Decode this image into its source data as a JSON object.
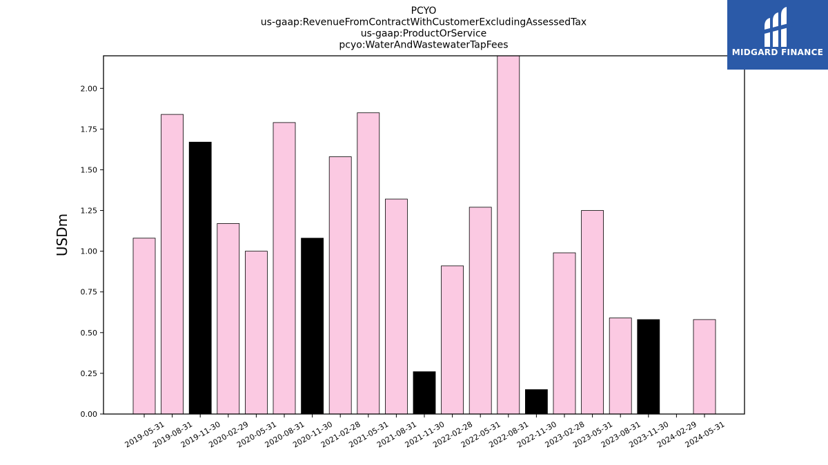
{
  "chart_data": {
    "type": "bar",
    "title_lines": [
      "PCYO",
      "us-gaap:RevenueFromContractWithCustomerExcludingAssessedTax",
      "us-gaap:ProductOrService",
      "pcyo:WaterAndWastewaterTapFees"
    ],
    "xlabel": "",
    "ylabel": "USDm",
    "categories": [
      "2019-05-31",
      "2019-08-31",
      "2019-11-30",
      "2020-02-29",
      "2020-05-31",
      "2020-08-31",
      "2020-11-30",
      "2021-02-28",
      "2021-05-31",
      "2021-08-31",
      "2021-11-30",
      "2022-02-28",
      "2022-05-31",
      "2022-08-31",
      "2022-11-30",
      "2023-02-28",
      "2023-05-31",
      "2023-08-31",
      "2023-11-30",
      "2024-02-29",
      "2024-05-31"
    ],
    "values": [
      1.08,
      1.84,
      1.67,
      1.17,
      1.0,
      1.79,
      1.08,
      1.58,
      1.85,
      1.32,
      0.26,
      0.91,
      1.27,
      2.2,
      0.15,
      0.99,
      1.25,
      0.59,
      0.58,
      0,
      0.58
    ],
    "bar_colors": [
      "#fbc9e2",
      "#fbc9e2",
      "#000000",
      "#fbc9e2",
      "#fbc9e2",
      "#fbc9e2",
      "#000000",
      "#fbc9e2",
      "#fbc9e2",
      "#fbc9e2",
      "#000000",
      "#fbc9e2",
      "#fbc9e2",
      "#fbc9e2",
      "#000000",
      "#fbc9e2",
      "#fbc9e2",
      "#fbc9e2",
      "#000000",
      "#fbc9e2",
      "#fbc9e2"
    ],
    "yticks": [
      "0.00",
      "0.25",
      "0.50",
      "0.75",
      "1.00",
      "1.25",
      "1.50",
      "1.75",
      "2.00"
    ],
    "ylim": [
      0,
      2.2
    ],
    "grid": false,
    "legend": "none"
  },
  "logo": {
    "text": "MIDGARD FINANCE",
    "background": "#2b5aa8",
    "icon": "midgard-logo-icon"
  }
}
